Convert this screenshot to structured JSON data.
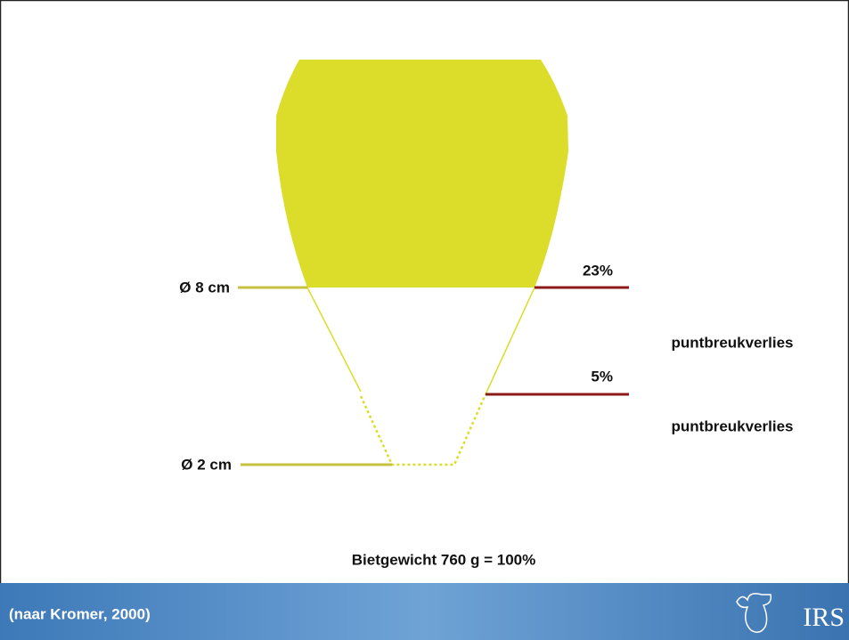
{
  "labels": {
    "top_diameter": "Ø 8 cm",
    "bottom_diameter": "Ø 2 cm",
    "loss_top": "23%",
    "loss_mid": "5%",
    "loss_top_text": "puntbreukverlies",
    "loss_mid_text": "puntbreukverlies",
    "total": "Bietgewicht 760 g = 100%"
  },
  "footer": {
    "source": "(naar Kromer, 2000)",
    "logo": "IRS"
  }
}
